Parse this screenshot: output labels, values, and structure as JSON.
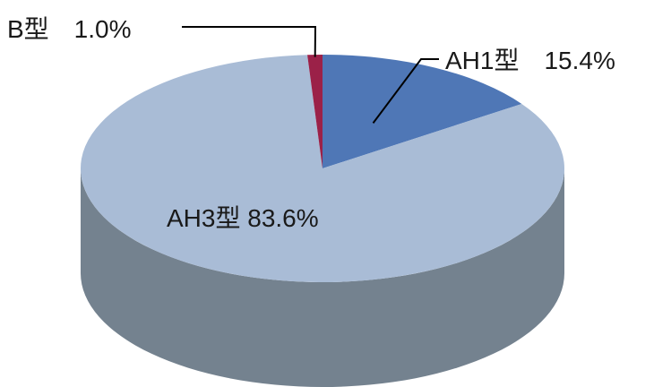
{
  "chart_data": {
    "type": "pie",
    "style": "3d",
    "title": "",
    "slices": [
      {
        "name": "AH1型",
        "value": 15.4,
        "label": "AH1型　15.4%",
        "color": "#4f77b6"
      },
      {
        "name": "AH3型",
        "value": 83.6,
        "label": "AH3型  83.6%",
        "color": "#a9bcd6"
      },
      {
        "name": "B型",
        "value": 1.0,
        "label": "B型　1.0%",
        "color": "#9b2148"
      }
    ],
    "legend": "none"
  },
  "colors": {
    "side_fill": "#74828f",
    "leader_line": "#000000"
  }
}
